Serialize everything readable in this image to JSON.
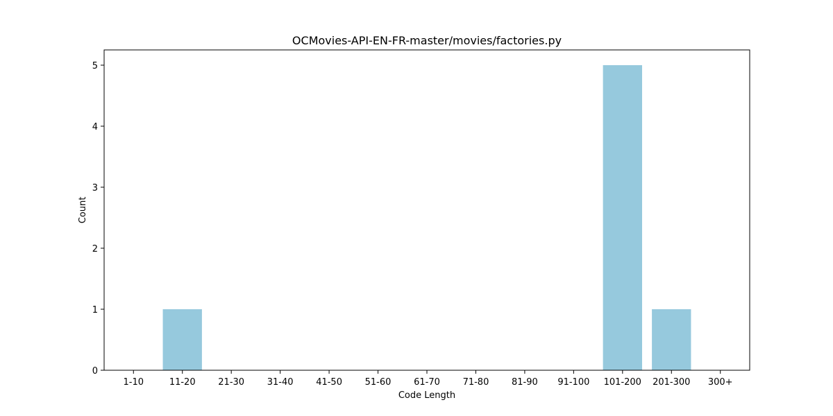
{
  "chart_data": {
    "type": "bar",
    "title": "OCMovies-API-EN-FR-master/movies/factories.py",
    "xlabel": "Code Length",
    "ylabel": "Count",
    "categories": [
      "1-10",
      "11-20",
      "21-30",
      "31-40",
      "41-50",
      "51-60",
      "61-70",
      "71-80",
      "81-90",
      "91-100",
      "101-200",
      "201-300",
      "300+"
    ],
    "values": [
      0,
      1,
      0,
      0,
      0,
      0,
      0,
      0,
      0,
      0,
      5,
      1,
      0
    ],
    "ylim": [
      0,
      5.25
    ],
    "yticks": [
      0,
      1,
      2,
      3,
      4,
      5
    ],
    "grid": false,
    "bar_color": "#96c9dd"
  }
}
